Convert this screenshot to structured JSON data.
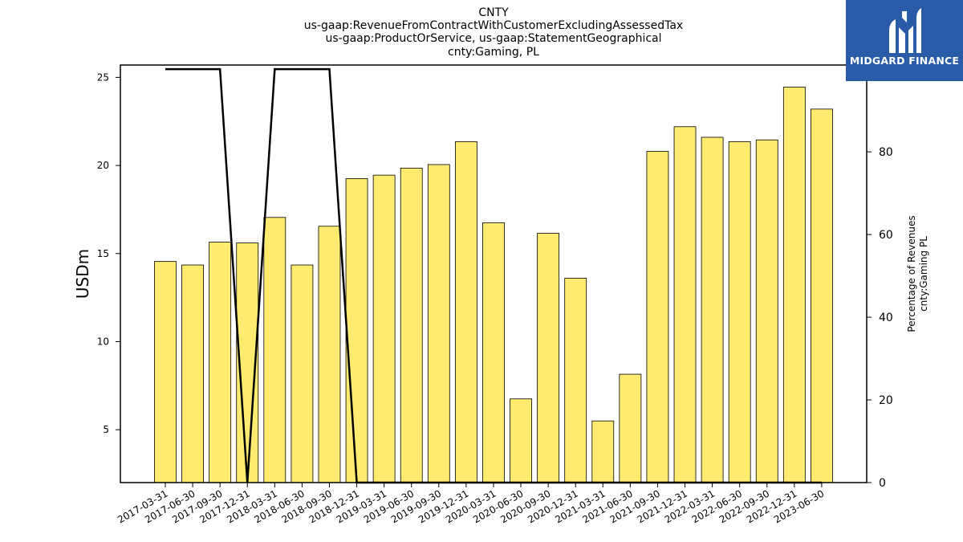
{
  "chart_data": {
    "type": "bar",
    "title_lines": [
      "CNTY",
      "us-gaap:RevenueFromContractWithCustomerExcludingAssessedTax",
      "us-gaap:ProductOrService, us-gaap:StatementGeographical",
      "cnty:Gaming, PL"
    ],
    "ylabel": "USDm",
    "ylabel_right_lines": [
      "Percentage of Revenues",
      "cnty:Gaming PL"
    ],
    "categories": [
      "2017-03-31",
      "2017-06-30",
      "2017-09-30",
      "2017-12-31",
      "2018-03-31",
      "2018-06-30",
      "2018-09-30",
      "2018-12-31",
      "2019-03-31",
      "2019-06-30",
      "2019-09-30",
      "2019-12-31",
      "2020-03-31",
      "2020-06-30",
      "2020-09-30",
      "2020-12-31",
      "2021-03-31",
      "2021-06-30",
      "2021-09-30",
      "2021-12-31",
      "2022-03-31",
      "2022-06-30",
      "2022-09-30",
      "2022-12-31",
      "2023-06-30"
    ],
    "series": [
      {
        "kind": "bar",
        "axis": "left",
        "color": "#ffeb70",
        "values": [
          14.55,
          14.35,
          15.65,
          15.6,
          17.05,
          14.35,
          16.55,
          19.25,
          19.45,
          19.85,
          20.05,
          21.35,
          16.75,
          6.75,
          16.15,
          13.6,
          5.5,
          8.15,
          20.8,
          22.2,
          21.6,
          21.35,
          21.45,
          24.45,
          23.2
        ]
      },
      {
        "kind": "line",
        "axis": "right",
        "color": "#000000",
        "values": [
          100,
          100,
          100,
          0,
          100,
          100,
          100,
          0,
          0,
          0,
          0,
          0,
          0,
          0,
          0,
          0,
          0,
          0,
          0,
          0,
          0,
          0,
          0,
          0,
          0
        ]
      }
    ],
    "ylim": [
      2,
      25.7
    ],
    "yticks": [
      5,
      10,
      15,
      20,
      25
    ],
    "ylim_right": [
      0,
      101
    ],
    "yticks_right": [
      0,
      20,
      40,
      60,
      80,
      100
    ],
    "grid": false,
    "legend": "none"
  },
  "logo": {
    "text": "MIDGARD FINANCE",
    "background": "#2a5ba8"
  }
}
